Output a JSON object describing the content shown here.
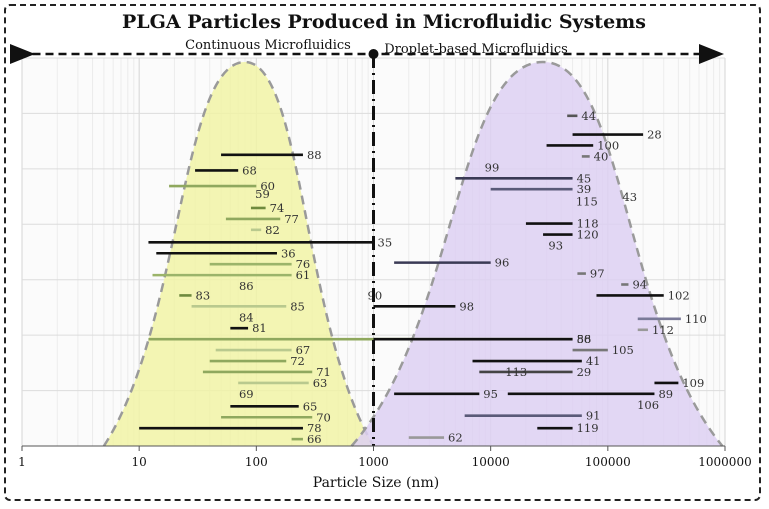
{
  "chart_data": {
    "type": "range",
    "title": "PLGA Particles Produced in Microfluidic Systems",
    "xlabel": "Particle Size (nm)",
    "ylabel": "",
    "x_scale": "log",
    "xlim": [
      1,
      1000000
    ],
    "x_ticks": [
      {
        "value": 1,
        "label": "1"
      },
      {
        "value": 10,
        "label": "10"
      },
      {
        "value": 100,
        "label": "100"
      },
      {
        "value": 1000,
        "label": "1000"
      },
      {
        "value": 10000,
        "label": "10000"
      },
      {
        "value": 100000,
        "label": "100000"
      },
      {
        "value": 1000000,
        "label": "1000000"
      }
    ],
    "grid": true,
    "regions": [
      {
        "label": "Continuous Microfluidics",
        "peak": 80,
        "x_range": [
          5,
          1000
        ],
        "color": "#f1f3a6"
      },
      {
        "label": "Droplet-based Microfluidics",
        "peak": 28000,
        "x_range": [
          650,
          950000
        ],
        "color": "#ddd0f2"
      }
    ],
    "divider_x": 1000,
    "series": [
      {
        "ref": "88",
        "min": 50,
        "max": 250,
        "row": 3,
        "color": "#111111"
      },
      {
        "ref": "68",
        "min": 30,
        "max": 70,
        "row": 4,
        "color": "#111111"
      },
      {
        "ref": "60",
        "min": 18,
        "max": 100,
        "row": 5,
        "color": "#8fa85e"
      },
      {
        "ref": "59",
        "min": 110,
        "max": 110,
        "row": 5.5,
        "color": "#8fa85e"
      },
      {
        "ref": "74",
        "min": 90,
        "max": 120,
        "row": 6.4,
        "color": "#6e8a3e"
      },
      {
        "ref": "77",
        "min": 55,
        "max": 160,
        "row": 7.1,
        "color": "#8fa85e"
      },
      {
        "ref": "82",
        "min": 90,
        "max": 110,
        "row": 7.8,
        "color": "#b9c98e"
      },
      {
        "ref": "35",
        "min": 12,
        "max": 1000,
        "row": 8.6,
        "color": "#111111"
      },
      {
        "ref": "36",
        "min": 14,
        "max": 150,
        "row": 9.3,
        "color": "#111111"
      },
      {
        "ref": "76",
        "min": 40,
        "max": 200,
        "row": 10.0,
        "color": "#9bb46a"
      },
      {
        "ref": "61",
        "min": 13,
        "max": 200,
        "row": 10.7,
        "color": "#9bb46a"
      },
      {
        "ref": "86",
        "min": 80,
        "max": 80,
        "row": 11.4,
        "color": "#9bb46a"
      },
      {
        "ref": "83",
        "min": 22,
        "max": 28,
        "row": 12.0,
        "color": "#6e8a3e"
      },
      {
        "ref": "85",
        "min": 28,
        "max": 180,
        "row": 12.7,
        "color": "#b9c98e"
      },
      {
        "ref": "84",
        "min": 80,
        "max": 80,
        "row": 13.4,
        "color": "#b9c98e"
      },
      {
        "ref": "81",
        "min": 60,
        "max": 85,
        "row": 14.1,
        "color": "#111111"
      },
      {
        "ref": "86",
        "min": 12,
        "max": 50000,
        "row": 14.8,
        "color": "#8fa85e"
      },
      {
        "ref": "67",
        "min": 45,
        "max": 200,
        "row": 15.5,
        "color": "#b9c98e"
      },
      {
        "ref": "72",
        "min": 40,
        "max": 180,
        "row": 16.2,
        "color": "#8fa85e"
      },
      {
        "ref": "71",
        "min": 35,
        "max": 300,
        "row": 16.9,
        "color": "#8fa85e"
      },
      {
        "ref": "63",
        "min": 70,
        "max": 280,
        "row": 17.6,
        "color": "#b9c98e"
      },
      {
        "ref": "69",
        "min": 80,
        "max": 80,
        "row": 18.3,
        "color": "#b9c98e"
      },
      {
        "ref": "65",
        "min": 60,
        "max": 230,
        "row": 19.1,
        "color": "#111111"
      },
      {
        "ref": "70",
        "min": 50,
        "max": 300,
        "row": 19.8,
        "color": "#8fa85e"
      },
      {
        "ref": "78",
        "min": 10,
        "max": 250,
        "row": 20.5,
        "color": "#111111"
      },
      {
        "ref": "66",
        "min": 200,
        "max": 250,
        "row": 21.2,
        "color": "#8fa85e"
      },
      {
        "ref": "44",
        "min": 45000,
        "max": 55000,
        "row": 0.5,
        "color": "#555555"
      },
      {
        "ref": "28",
        "min": 50000,
        "max": 200000,
        "row": 1.7,
        "color": "#111111"
      },
      {
        "ref": "100",
        "min": 30000,
        "max": 75000,
        "row": 2.4,
        "color": "#111111"
      },
      {
        "ref": "40",
        "min": 60000,
        "max": 70000,
        "row": 3.1,
        "color": "#777777"
      },
      {
        "ref": "99",
        "min": 10000,
        "max": 10000,
        "row": 3.8,
        "color": "#777777"
      },
      {
        "ref": "45",
        "min": 5000,
        "max": 50000,
        "row": 4.5,
        "color": "#3a3a55"
      },
      {
        "ref": "39",
        "min": 10000,
        "max": 50000,
        "row": 5.2,
        "color": "#5a5a78"
      },
      {
        "ref": "115",
        "min": 60000,
        "max": 60000,
        "row": 6.0,
        "color": "#555555"
      },
      {
        "ref": "43",
        "min": 150000,
        "max": 150000,
        "row": 5.7,
        "color": "#555555"
      },
      {
        "ref": "118",
        "min": 20000,
        "max": 50000,
        "row": 7.4,
        "color": "#111111"
      },
      {
        "ref": "120",
        "min": 28000,
        "max": 50000,
        "row": 8.1,
        "color": "#111111"
      },
      {
        "ref": "93",
        "min": 35000,
        "max": 35000,
        "row": 8.8,
        "color": "#555555"
      },
      {
        "ref": "96",
        "min": 1500,
        "max": 10000,
        "row": 9.9,
        "color": "#3a3a55"
      },
      {
        "ref": "97",
        "min": 55000,
        "max": 65000,
        "row": 10.6,
        "color": "#777777"
      },
      {
        "ref": "94",
        "min": 130000,
        "max": 150000,
        "row": 11.3,
        "color": "#777777"
      },
      {
        "ref": "90",
        "min": 1000,
        "max": 1000,
        "row": 12.0,
        "color": "#555555"
      },
      {
        "ref": "102",
        "min": 80000,
        "max": 300000,
        "row": 12.0,
        "color": "#111111"
      },
      {
        "ref": "98",
        "min": 1000,
        "max": 5000,
        "row": 12.7,
        "color": "#111111"
      },
      {
        "ref": "110",
        "min": 180000,
        "max": 420000,
        "row": 13.5,
        "color": "#7a7a98"
      },
      {
        "ref": "112",
        "min": 180000,
        "max": 220000,
        "row": 14.2,
        "color": "#999999"
      },
      {
        "ref": "58",
        "min": 1000,
        "max": 50000,
        "row": 14.8,
        "color": "#111111"
      },
      {
        "ref": "105",
        "min": 50000,
        "max": 100000,
        "row": 15.5,
        "color": "#777777"
      },
      {
        "ref": "41",
        "min": 7000,
        "max": 60000,
        "row": 16.2,
        "color": "#111111"
      },
      {
        "ref": "29",
        "min": 8000,
        "max": 50000,
        "row": 16.9,
        "color": "#444444"
      },
      {
        "ref": "113",
        "min": 15000,
        "max": 15000,
        "row": 16.9,
        "color": "#555555"
      },
      {
        "ref": "109",
        "min": 250000,
        "max": 400000,
        "row": 17.6,
        "color": "#111111"
      },
      {
        "ref": "95",
        "min": 1500,
        "max": 8000,
        "row": 18.3,
        "color": "#111111"
      },
      {
        "ref": "89",
        "min": 14000,
        "max": 250000,
        "row": 18.3,
        "color": "#111111"
      },
      {
        "ref": "106",
        "min": 200000,
        "max": 200000,
        "row": 19.0,
        "color": "#555555"
      },
      {
        "ref": "91",
        "min": 6000,
        "max": 60000,
        "row": 19.7,
        "color": "#5a5a78"
      },
      {
        "ref": "119",
        "min": 25000,
        "max": 50000,
        "row": 20.5,
        "color": "#111111"
      },
      {
        "ref": "62",
        "min": 2000,
        "max": 4000,
        "row": 21.1,
        "color": "#999999"
      }
    ]
  }
}
